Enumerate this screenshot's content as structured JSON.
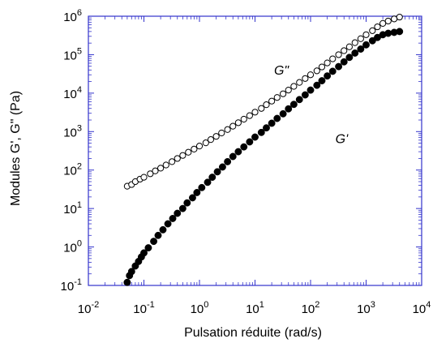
{
  "chart_data": {
    "type": "scatter",
    "title": "",
    "xlabel": "Pulsation réduite (rad/s)",
    "ylabel": "Modules G', G\" (Pa)",
    "xscale": "log",
    "yscale": "log",
    "xlim": [
      0.01,
      10000
    ],
    "ylim": [
      0.1,
      1000000
    ],
    "x_tick_exponents": [
      -2,
      -1,
      0,
      1,
      2,
      3,
      4
    ],
    "y_tick_exponents": [
      -1,
      0,
      1,
      2,
      3,
      4,
      5,
      6
    ],
    "tick_base": "10",
    "grid": false,
    "series": [
      {
        "name": "G\"",
        "marker": "open-circle",
        "color": "#000000",
        "points": [
          [
            0.05,
            38
          ],
          [
            0.06,
            42
          ],
          [
            0.07,
            50
          ],
          [
            0.085,
            58
          ],
          [
            0.1,
            65
          ],
          [
            0.13,
            80
          ],
          [
            0.16,
            95
          ],
          [
            0.2,
            112
          ],
          [
            0.25,
            135
          ],
          [
            0.32,
            165
          ],
          [
            0.4,
            200
          ],
          [
            0.5,
            240
          ],
          [
            0.63,
            290
          ],
          [
            0.8,
            350
          ],
          [
            1.0,
            420
          ],
          [
            1.3,
            510
          ],
          [
            1.6,
            620
          ],
          [
            2.0,
            750
          ],
          [
            2.5,
            920
          ],
          [
            3.2,
            1130
          ],
          [
            4.0,
            1380
          ],
          [
            5.0,
            1700
          ],
          [
            6.3,
            2100
          ],
          [
            8.0,
            2600
          ],
          [
            10,
            3200
          ],
          [
            13,
            4000
          ],
          [
            16,
            5000
          ],
          [
            20,
            6200
          ],
          [
            25,
            7700
          ],
          [
            32,
            9600
          ],
          [
            40,
            12000
          ],
          [
            50,
            15000
          ],
          [
            63,
            19000
          ],
          [
            80,
            24000
          ],
          [
            100,
            30000
          ],
          [
            130,
            38000
          ],
          [
            160,
            48000
          ],
          [
            200,
            61000
          ],
          [
            250,
            78000
          ],
          [
            320,
            100000
          ],
          [
            400,
            127000
          ],
          [
            500,
            160000
          ],
          [
            630,
            205000
          ],
          [
            800,
            260000
          ],
          [
            1000,
            330000
          ],
          [
            1300,
            420000
          ],
          [
            1600,
            530000
          ],
          [
            2000,
            650000
          ],
          [
            2500,
            750000
          ],
          [
            3200,
            850000
          ],
          [
            4000,
            950000
          ]
        ]
      },
      {
        "name": "G'",
        "marker": "filled-circle",
        "color": "#000000",
        "points": [
          [
            0.05,
            0.12
          ],
          [
            0.055,
            0.18
          ],
          [
            0.06,
            0.23
          ],
          [
            0.07,
            0.32
          ],
          [
            0.08,
            0.42
          ],
          [
            0.09,
            0.55
          ],
          [
            0.1,
            0.7
          ],
          [
            0.12,
            0.95
          ],
          [
            0.15,
            1.4
          ],
          [
            0.18,
            2.0
          ],
          [
            0.22,
            2.8
          ],
          [
            0.27,
            4.0
          ],
          [
            0.33,
            5.5
          ],
          [
            0.4,
            7.5
          ],
          [
            0.5,
            10
          ],
          [
            0.6,
            14
          ],
          [
            0.75,
            19
          ],
          [
            0.9,
            26
          ],
          [
            1.1,
            35
          ],
          [
            1.4,
            48
          ],
          [
            1.7,
            65
          ],
          [
            2.1,
            90
          ],
          [
            2.6,
            120
          ],
          [
            3.2,
            165
          ],
          [
            4.0,
            225
          ],
          [
            5.0,
            300
          ],
          [
            6.3,
            400
          ],
          [
            8.0,
            540
          ],
          [
            10,
            720
          ],
          [
            13,
            950
          ],
          [
            16,
            1250
          ],
          [
            20,
            1650
          ],
          [
            25,
            2200
          ],
          [
            32,
            2900
          ],
          [
            40,
            3900
          ],
          [
            50,
            5100
          ],
          [
            63,
            6800
          ],
          [
            80,
            9000
          ],
          [
            100,
            12000
          ],
          [
            130,
            16000
          ],
          [
            160,
            21000
          ],
          [
            200,
            28000
          ],
          [
            250,
            37000
          ],
          [
            320,
            49000
          ],
          [
            400,
            65000
          ],
          [
            500,
            85000
          ],
          [
            630,
            110000
          ],
          [
            800,
            140000
          ],
          [
            1000,
            180000
          ],
          [
            1300,
            230000
          ],
          [
            1600,
            280000
          ],
          [
            2000,
            330000
          ],
          [
            2500,
            360000
          ],
          [
            3200,
            380000
          ],
          [
            4000,
            400000
          ]
        ]
      }
    ],
    "series_labels": [
      {
        "text": "G\"",
        "x": 22,
        "y": 30000
      },
      {
        "text": "G'",
        "x": 280,
        "y": 500
      }
    ]
  }
}
